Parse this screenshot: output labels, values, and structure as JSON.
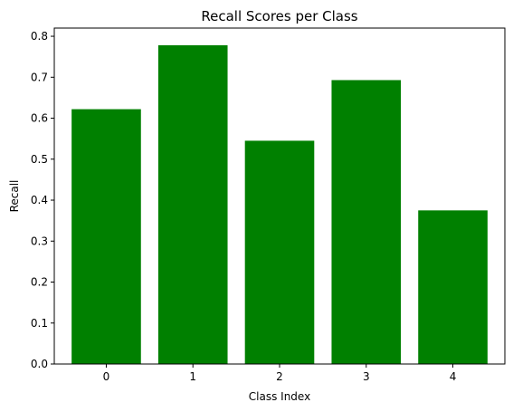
{
  "chart_data": {
    "type": "bar",
    "title": "Recall Scores per Class",
    "xlabel": "Class Index",
    "ylabel": "Recall",
    "categories": [
      "0",
      "1",
      "2",
      "3",
      "4"
    ],
    "values": [
      0.622,
      0.778,
      0.545,
      0.693,
      0.375
    ],
    "ylim": [
      0,
      0.82
    ],
    "yticks": [
      0.0,
      0.1,
      0.2,
      0.3,
      0.4,
      0.5,
      0.6,
      0.7,
      0.8
    ],
    "ytick_labels": [
      "0.0",
      "0.1",
      "0.2",
      "0.3",
      "0.4",
      "0.5",
      "0.6",
      "0.7",
      "0.8"
    ],
    "bar_color": "#008000",
    "grid": false,
    "legend": "none"
  }
}
